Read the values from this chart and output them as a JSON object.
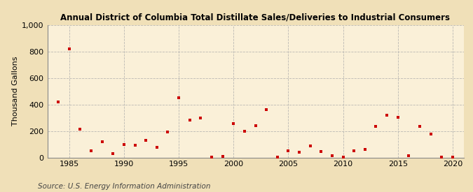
{
  "title": "Annual District of Columbia Total Distillate Sales/Deliveries to Industrial Consumers",
  "ylabel": "Thousand Gallons",
  "source": "Source: U.S. Energy Information Administration",
  "background_color": "#f0e0b8",
  "plot_background_color": "#faf0d8",
  "marker_color": "#cc0000",
  "years": [
    1984,
    1985,
    1986,
    1987,
    1988,
    1989,
    1990,
    1991,
    1992,
    1993,
    1994,
    1995,
    1996,
    1997,
    1998,
    1999,
    2000,
    2001,
    2002,
    2003,
    2004,
    2005,
    2006,
    2007,
    2008,
    2009,
    2010,
    2011,
    2012,
    2013,
    2014,
    2015,
    2016,
    2017,
    2018,
    2019,
    2020
  ],
  "values": [
    420,
    820,
    215,
    50,
    120,
    30,
    100,
    90,
    130,
    75,
    190,
    450,
    280,
    300,
    5,
    10,
    255,
    200,
    240,
    360,
    5,
    50,
    40,
    85,
    45,
    15,
    5,
    50,
    60,
    235,
    320,
    305,
    15,
    235,
    175,
    5,
    5
  ],
  "xlim": [
    1983,
    2021
  ],
  "ylim": [
    0,
    1000
  ],
  "yticks": [
    0,
    200,
    400,
    600,
    800,
    1000
  ],
  "ytick_labels": [
    "0",
    "200",
    "400",
    "600",
    "800",
    "1,000"
  ],
  "xticks": [
    1985,
    1990,
    1995,
    2000,
    2005,
    2010,
    2015,
    2020
  ],
  "grid_color": "#aaaaaa",
  "title_fontsize": 8.5,
  "axis_fontsize": 8,
  "source_fontsize": 7.5
}
